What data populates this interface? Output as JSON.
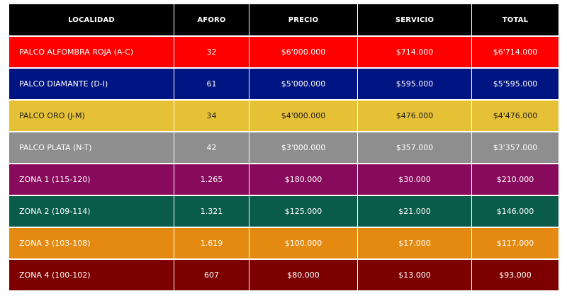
{
  "table": {
    "headers": [
      "LOCALIDAD",
      "AFORO",
      "PRECIO",
      "SERVICIO",
      "TOTAL"
    ],
    "rows": [
      {
        "color": "#fe0000",
        "localidad": "PALCO ALFOMBRA ROJA (A-C)",
        "aforo": "32",
        "precio": "$6'000.000",
        "servicio": "$714.000",
        "total": "$6'714.000"
      },
      {
        "color": "#001482",
        "localidad": "PALCO DIAMANTE (D-I)",
        "aforo": "61",
        "precio": "$5'000.000",
        "servicio": "$595.000",
        "total": "$5'595.000"
      },
      {
        "color": "#e6c135",
        "localidad": "PALCO ORO (J-M)",
        "aforo": "34",
        "precio": "$4'000.000",
        "servicio": "$476.000",
        "total": "$4'476.000"
      },
      {
        "color": "#8e8e8e",
        "localidad": "PALCO PLATA (N-T)",
        "aforo": "42",
        "precio": "$3'000.000",
        "servicio": "$357.000",
        "total": "$3'357.000"
      },
      {
        "color": "#880a5c",
        "localidad": "ZONA 1 (115-120)",
        "aforo": "1.265",
        "precio": "$180.000",
        "servicio": "$30.000",
        "total": "$210.000"
      },
      {
        "color": "#095c49",
        "localidad": "ZONA 2 (109-114)",
        "aforo": "1.321",
        "precio": "$125.000",
        "servicio": "$21.000",
        "total": "$146.000"
      },
      {
        "color": "#e58a10",
        "localidad": "ZONA 3 (103-108)",
        "aforo": "1.619",
        "precio": "$100.000",
        "servicio": "$17.000",
        "total": "$117.000"
      },
      {
        "color": "#7c0000",
        "localidad": "ZONA 4 (100-102)",
        "aforo": "607",
        "precio": "$80.000",
        "servicio": "$13.000",
        "total": "$93.000"
      }
    ]
  }
}
